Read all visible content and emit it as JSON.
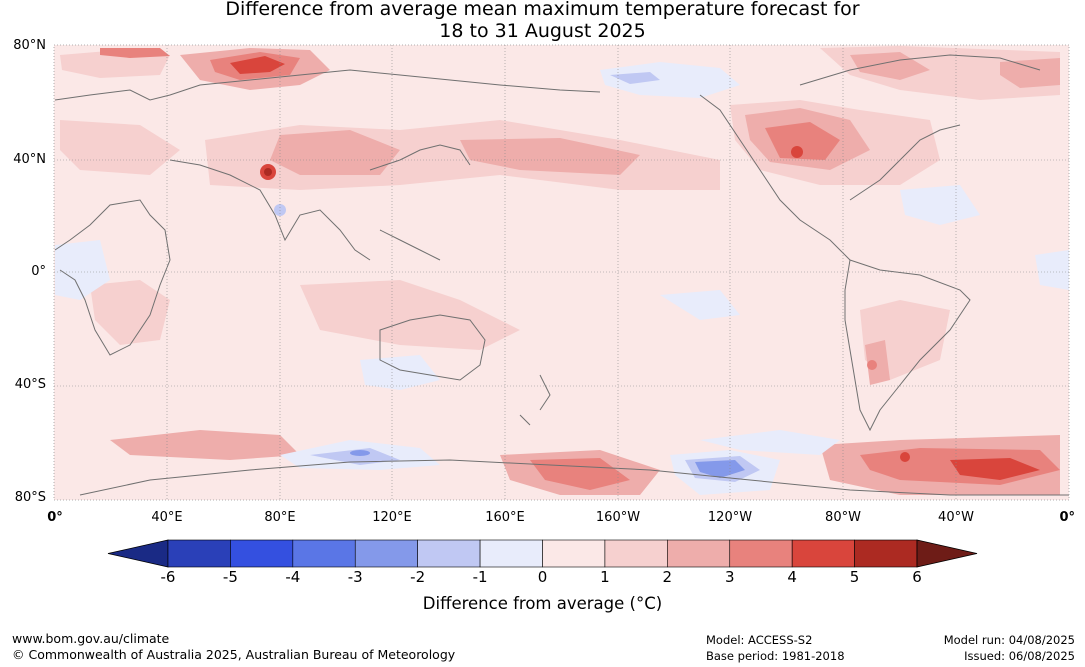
{
  "title": {
    "line1": "Difference from average mean maximum temperature forecast for",
    "line2": "18 to 31 August 2025"
  },
  "map": {
    "lat_labels": [
      "80°N",
      "40°N",
      "0°",
      "40°S",
      "80°S"
    ],
    "lon_labels": [
      "0°",
      "40°E",
      "80°E",
      "120°E",
      "160°E",
      "160°W",
      "120°W",
      "80°W",
      "40°W",
      "0°"
    ],
    "background_anomaly_color": "#fbe8e7"
  },
  "colorbar": {
    "title": "Difference from average (°C)",
    "ticks": [
      "-6",
      "-5",
      "-4",
      "-3",
      "-2",
      "-1",
      "0",
      "1",
      "2",
      "3",
      "4",
      "5",
      "6"
    ],
    "colors": [
      "#1a2a85",
      "#2a40b8",
      "#3450e0",
      "#5a76e6",
      "#8499ea",
      "#c0c8f3",
      "#e8ecfb",
      "#fbe8e7",
      "#f6d0cf",
      "#eeadab",
      "#e8827d",
      "#d9453c",
      "#ac2a22",
      "#6e1c17"
    ]
  },
  "footer": {
    "website": "www.bom.gov.au/climate",
    "copyright": "© Commonwealth of Australia 2025, Australian Bureau of Meteorology",
    "model": "Model: ACCESS-S2",
    "base_period": "Base period: 1981-2018",
    "model_run": "Model run: 04/08/2025",
    "issued": "Issued: 06/08/2025"
  }
}
